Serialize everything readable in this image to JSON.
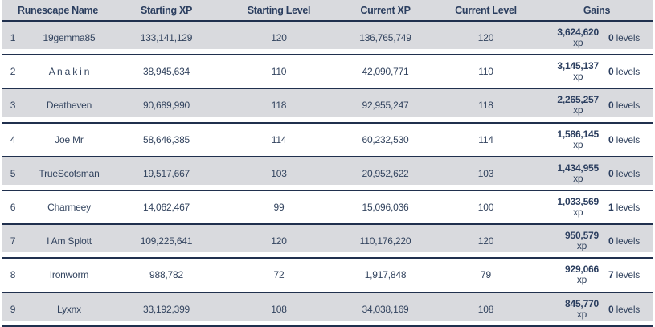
{
  "table": {
    "columns": {
      "name": "Runescape Name",
      "starting_xp": "Starting XP",
      "starting_level": "Starting Level",
      "current_xp": "Current XP",
      "current_level": "Current Level",
      "gains": "Gains"
    },
    "gains_units": {
      "xp": "xp",
      "levels": "levels"
    },
    "rows": [
      {
        "rank": "1",
        "name": "19gemma85",
        "starting_xp": "133,141,129",
        "starting_level": "120",
        "current_xp": "136,765,749",
        "current_level": "120",
        "gains_xp": "3,624,620",
        "gains_levels": "0"
      },
      {
        "rank": "2",
        "name": "A n a k i n",
        "starting_xp": "38,945,634",
        "starting_level": "110",
        "current_xp": "42,090,771",
        "current_level": "110",
        "gains_xp": "3,145,137",
        "gains_levels": "0"
      },
      {
        "rank": "3",
        "name": "Deatheven",
        "starting_xp": "90,689,990",
        "starting_level": "118",
        "current_xp": "92,955,247",
        "current_level": "118",
        "gains_xp": "2,265,257",
        "gains_levels": "0"
      },
      {
        "rank": "4",
        "name": "Joe Mr",
        "starting_xp": "58,646,385",
        "starting_level": "114",
        "current_xp": "60,232,530",
        "current_level": "114",
        "gains_xp": "1,586,145",
        "gains_levels": "0"
      },
      {
        "rank": "5",
        "name": "TrueScotsman",
        "starting_xp": "19,517,667",
        "starting_level": "103",
        "current_xp": "20,952,622",
        "current_level": "103",
        "gains_xp": "1,434,955",
        "gains_levels": "0"
      },
      {
        "rank": "6",
        "name": "Charmeey",
        "starting_xp": "14,062,467",
        "starting_level": "99",
        "current_xp": "15,096,036",
        "current_level": "100",
        "gains_xp": "1,033,569",
        "gains_levels": "1"
      },
      {
        "rank": "7",
        "name": "I Am Splott",
        "starting_xp": "109,225,641",
        "starting_level": "120",
        "current_xp": "110,176,220",
        "current_level": "120",
        "gains_xp": "950,579",
        "gains_levels": "0"
      },
      {
        "rank": "8",
        "name": "Ironworm",
        "starting_xp": "988,782",
        "starting_level": "72",
        "current_xp": "1,917,848",
        "current_level": "79",
        "gains_xp": "929,066",
        "gains_levels": "7"
      },
      {
        "rank": "9",
        "name": "Lyxnx",
        "starting_xp": "33,192,399",
        "starting_level": "108",
        "current_xp": "34,038,169",
        "current_level": "108",
        "gains_xp": "845,770",
        "gains_levels": "0"
      }
    ]
  },
  "colors": {
    "row_alt_background": "#d9dade",
    "row_background": "#ffffff",
    "separator": "#20304e",
    "text": "#33445f",
    "header_text": "#2b3e5f"
  }
}
